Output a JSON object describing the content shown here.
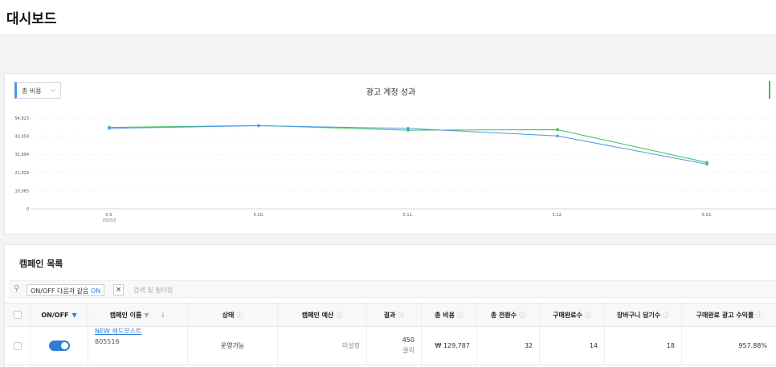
{
  "header": {
    "title": "대시보드"
  },
  "chart_card": {
    "metric_select": "총 비용",
    "title": "광고 계정 성과"
  },
  "chart_data": {
    "type": "line",
    "x": [
      "5.9.",
      "5.10.",
      "5.11.",
      "5.12.",
      "5.13."
    ],
    "x_sublabel": "2025년",
    "y_ticks": [
      "54,823",
      "43,059",
      "32,894",
      "21,929",
      "10,965",
      "0"
    ],
    "ylim": [
      0,
      54823
    ],
    "series": [
      {
        "color": "#3cbf5a",
        "values": [
          49200,
          50300,
          47500,
          47800,
          28000
        ]
      },
      {
        "color": "#4a9ae6",
        "values": [
          48600,
          50200,
          48600,
          44000,
          27000
        ]
      }
    ],
    "grid": true
  },
  "campaigns": {
    "title": "캠페인 목록",
    "filter_chip": {
      "prefix": "ON/OFF 다음과 같음 ",
      "value": "ON",
      "remove": "×"
    },
    "filter_placeholder": "검색 및 필터링",
    "columns": {
      "onoff": "ON/OFF",
      "name": "캠페인 이름",
      "status": "상태",
      "budget": "캠페인 예산",
      "results": "결과",
      "cost": "총 비용",
      "conversions": "총 전환수",
      "purchases": "구매완료수",
      "cart": "장바구니 담기수",
      "roas": "구매완료 광고 수익률"
    },
    "rows": [
      {
        "on": true,
        "name": "NEW 애드부스트",
        "id": "805516",
        "status": "운영가능",
        "budget": "미설정",
        "results": "450",
        "results_unit": "클릭",
        "cost": "₩ 129,787",
        "conversions": "32",
        "purchases": "14",
        "cart": "18",
        "roas": "957.88%"
      }
    ]
  },
  "icons": {
    "info": "ⓘ",
    "funnel": "▼",
    "sort": "↓",
    "search": "⚲",
    "chevron": "⌵"
  }
}
